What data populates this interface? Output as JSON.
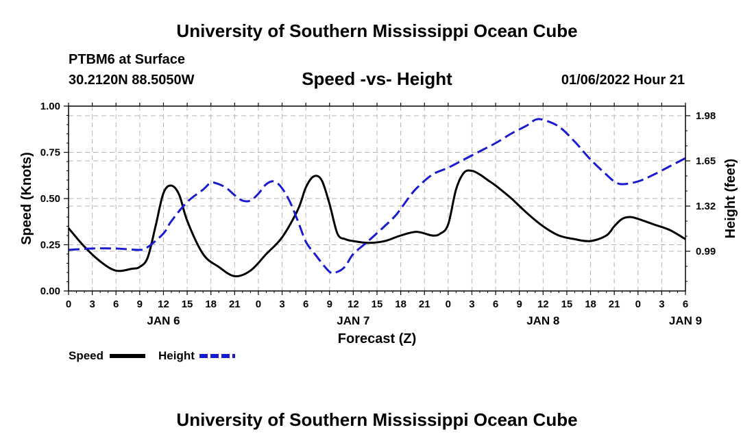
{
  "header": {
    "top_title": "University of Southern Mississippi Ocean Cube",
    "station": "PTBM6 at Surface",
    "coords": "30.2120N  88.5050W",
    "chart_title": "Speed -vs- Height",
    "datetime": "01/06/2022 Hour 21",
    "bottom_title": "University of Southern Mississippi Ocean Cube"
  },
  "chart_data": {
    "type": "line",
    "title": "Speed -vs- Height",
    "xlabel": "Forecast (Z)",
    "ylabel": "Speed (Knots)",
    "y2label": "Height (feet)",
    "x_ticks": [
      "0",
      "3",
      "6",
      "9",
      "12",
      "15",
      "18",
      "21",
      "0",
      "3",
      "6",
      "9",
      "12",
      "15",
      "18",
      "21",
      "0",
      "3",
      "6",
      "9",
      "12",
      "15",
      "18",
      "21",
      "0",
      "3",
      "6"
    ],
    "day_labels": [
      {
        "label": "JAN 6",
        "hour": 12
      },
      {
        "label": "JAN 7",
        "hour": 36
      },
      {
        "label": "JAN 8",
        "hour": 60
      },
      {
        "label": "JAN 9",
        "hour": 78
      }
    ],
    "xlim": [
      0,
      78
    ],
    "ylim": [
      0,
      1.0
    ],
    "y_ticks": [
      "0.00",
      "0.25",
      "0.50",
      "0.75",
      "1.00"
    ],
    "y2lim": [
      0.7,
      2.05
    ],
    "y2_ticks": [
      "0.99",
      "1.32",
      "1.65",
      "1.98"
    ],
    "colors": {
      "speed": "#000000",
      "height": "#1a1ad0",
      "grid": "#b4b4b4"
    },
    "series": [
      {
        "name": "Speed",
        "axis": "left",
        "x": [
          0,
          2,
          4,
          6,
          8,
          9,
          10,
          11,
          12,
          13,
          14,
          15,
          17,
          19,
          21,
          23,
          25,
          27,
          29,
          30,
          31,
          32,
          33,
          34,
          35,
          36,
          38,
          40,
          42,
          44,
          46,
          47,
          48,
          49,
          50,
          51,
          52,
          53,
          54,
          56,
          58,
          60,
          62,
          64,
          66,
          68,
          69,
          70,
          71,
          72,
          74,
          76,
          78
        ],
        "values": [
          0.34,
          0.24,
          0.16,
          0.11,
          0.12,
          0.13,
          0.18,
          0.35,
          0.53,
          0.57,
          0.52,
          0.38,
          0.2,
          0.13,
          0.08,
          0.11,
          0.2,
          0.29,
          0.44,
          0.56,
          0.62,
          0.6,
          0.47,
          0.31,
          0.28,
          0.27,
          0.26,
          0.27,
          0.3,
          0.32,
          0.3,
          0.31,
          0.36,
          0.55,
          0.64,
          0.65,
          0.63,
          0.6,
          0.57,
          0.5,
          0.42,
          0.35,
          0.3,
          0.28,
          0.27,
          0.3,
          0.35,
          0.39,
          0.4,
          0.39,
          0.36,
          0.33,
          0.28
        ]
      },
      {
        "name": "Height",
        "axis": "right",
        "x": [
          0,
          3,
          6,
          9,
          10,
          12,
          13,
          15,
          17,
          18,
          19,
          20,
          21,
          22,
          23,
          24,
          25,
          26,
          27,
          28,
          29,
          30,
          31,
          33,
          34,
          35,
          36,
          38,
          41,
          42,
          43,
          44,
          46,
          48,
          50,
          52,
          54,
          56,
          58,
          59,
          60,
          62,
          64,
          66,
          68,
          69,
          70,
          72,
          74,
          76,
          78
        ],
        "values": [
          1.0,
          1.01,
          1.01,
          1.0,
          1.02,
          1.12,
          1.21,
          1.35,
          1.44,
          1.49,
          1.48,
          1.45,
          1.4,
          1.36,
          1.36,
          1.41,
          1.48,
          1.5,
          1.45,
          1.35,
          1.21,
          1.06,
          0.98,
          0.84,
          0.84,
          0.88,
          0.97,
          1.07,
          1.23,
          1.3,
          1.38,
          1.45,
          1.55,
          1.6,
          1.66,
          1.72,
          1.78,
          1.85,
          1.91,
          1.95,
          1.95,
          1.9,
          1.79,
          1.66,
          1.55,
          1.5,
          1.48,
          1.5,
          1.55,
          1.61,
          1.67
        ]
      }
    ],
    "legend": [
      {
        "label": "Speed",
        "color": "#000000",
        "style": "solid"
      },
      {
        "label": "Height",
        "color": "#1a1ad0",
        "style": "dashed"
      }
    ]
  }
}
